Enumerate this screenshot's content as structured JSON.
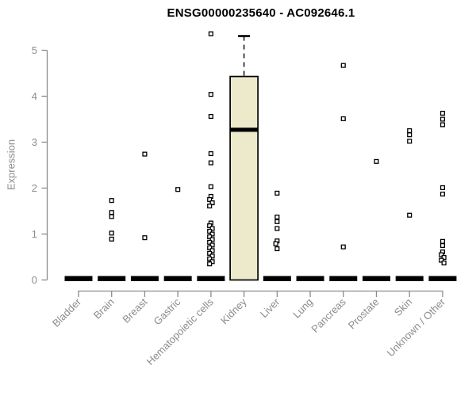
{
  "title": "ENSG00000235640 - AC092646.1",
  "ylabel": "Expression",
  "chart_data": {
    "type": "boxplot",
    "title": "ENSG00000235640 - AC092646.1",
    "xlabel": "",
    "ylabel": "Expression",
    "ylim": [
      0,
      5.45
    ],
    "yticks": [
      0,
      1,
      2,
      3,
      4,
      5
    ],
    "grid": false,
    "legend": null,
    "colors": {
      "axis": "#8c8c8c",
      "tick_text": "#8c8c8c",
      "title": "#000000",
      "box_fill": "#EDE9CB",
      "box_border": "#000000",
      "median": "#000000",
      "point_stroke": "#000000",
      "point_fill": "#ffffff",
      "background": "#ffffff"
    },
    "point_shape": "open-square",
    "categories": [
      "Bladder",
      "Brain",
      "Breast",
      "Gastric",
      "Hematopoietic cells",
      "Kidney",
      "Liver",
      "Lung",
      "Pancreas",
      "Prostate",
      "Skin",
      "Unknown / Other"
    ],
    "boxes": [
      {
        "category": "Bladder",
        "low": 0,
        "q1": 0,
        "median": 0,
        "q3": 0,
        "high": 0,
        "outliers": []
      },
      {
        "category": "Brain",
        "low": 0,
        "q1": 0,
        "median": 0,
        "q3": 0,
        "high": 0,
        "outliers": [
          1.73,
          1.47,
          1.38,
          1.02,
          0.89
        ]
      },
      {
        "category": "Breast",
        "low": 0,
        "q1": 0,
        "median": 0,
        "q3": 0,
        "high": 0,
        "outliers": [
          2.74,
          0.92
        ]
      },
      {
        "category": "Gastric",
        "low": 0,
        "q1": 0,
        "median": 0,
        "q3": 0,
        "high": 0,
        "outliers": [
          1.97
        ]
      },
      {
        "category": "Hematopoietic cells",
        "low": 0,
        "q1": 0,
        "median": 0,
        "q3": 0,
        "high": 0,
        "outliers": [
          5.36,
          4.04,
          3.56,
          2.75,
          2.55,
          2.03,
          1.82,
          1.75,
          1.68,
          1.61,
          1.24,
          1.18,
          1.12,
          1.06,
          1.0,
          0.94,
          0.88,
          0.82,
          0.76,
          0.7,
          0.64,
          0.58,
          0.52,
          0.46,
          0.4,
          0.35
        ]
      },
      {
        "category": "Kidney",
        "low": 0,
        "q1": 0,
        "median": 3.27,
        "q3": 4.43,
        "high": 5.31,
        "outliers": []
      },
      {
        "category": "Liver",
        "low": 0,
        "q1": 0,
        "median": 0,
        "q3": 0,
        "high": 0,
        "outliers": [
          1.89,
          1.37,
          1.27,
          1.12,
          0.85,
          0.79,
          0.68
        ]
      },
      {
        "category": "Lung",
        "low": 0,
        "q1": 0,
        "median": 0,
        "q3": 0,
        "high": 0,
        "outliers": []
      },
      {
        "category": "Pancreas",
        "low": 0,
        "q1": 0,
        "median": 0,
        "q3": 0,
        "high": 0,
        "outliers": [
          4.67,
          3.51,
          0.72
        ]
      },
      {
        "category": "Prostate",
        "low": 0,
        "q1": 0,
        "median": 0,
        "q3": 0,
        "high": 0,
        "outliers": [
          2.58
        ]
      },
      {
        "category": "Skin",
        "low": 0,
        "q1": 0,
        "median": 0,
        "q3": 0,
        "high": 0,
        "outliers": [
          3.25,
          3.16,
          3.02,
          1.41
        ]
      },
      {
        "category": "Unknown / Other",
        "low": 0,
        "q1": 0,
        "median": 0,
        "q3": 0,
        "high": 0,
        "outliers": [
          3.63,
          3.5,
          3.38,
          2.01,
          1.87,
          0.84,
          0.75,
          0.61,
          0.55,
          0.49,
          0.43,
          0.37
        ]
      }
    ]
  }
}
